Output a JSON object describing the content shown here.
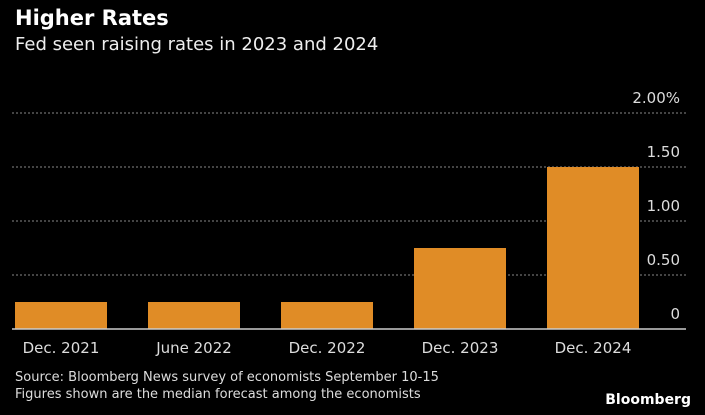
{
  "header": {
    "title": "Higher Rates",
    "subtitle": "Fed seen raising rates in 2023 and 2024"
  },
  "footer": {
    "source": "Source: Bloomberg News survey of economists September 10-15",
    "note": "Figures shown are the median forecast among the economists",
    "logo": "Bloomberg"
  },
  "chart_data": {
    "type": "bar",
    "title": "Higher Rates",
    "subtitle": "Fed seen raising rates in 2023 and 2024",
    "categories": [
      "Dec. 2021",
      "June 2022",
      "Dec. 2022",
      "Dec. 2023",
      "Dec. 2024"
    ],
    "values": [
      0.25,
      0.25,
      0.25,
      0.75,
      1.5
    ],
    "ylim": [
      0,
      2
    ],
    "yticks": [
      0,
      0.5,
      1,
      1.5,
      2
    ],
    "ytick_labels": [
      "0",
      "0.50",
      "1.00",
      "1.50",
      "2.00%"
    ],
    "grid": true,
    "bar_color": "#e08c26",
    "background": "#000000"
  }
}
